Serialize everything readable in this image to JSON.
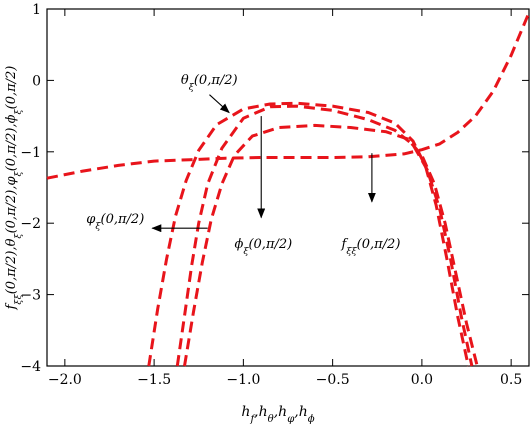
{
  "chart_data": {
    "type": "line",
    "xlabel": "h_f,h_θ,h_φ,h_ϕ",
    "ylabel": "f_ξξ(0,π/2),θ_ξ(0,π/2),φ_ξ(0,π/2),ϕ_ξ(0,π/2)",
    "xlim": [
      -2.1,
      0.6
    ],
    "ylim": [
      -4,
      1
    ],
    "x_ticks": [
      -2.0,
      -1.5,
      -1.0,
      -0.5,
      0.0,
      0.5
    ],
    "x_tick_labels": [
      "−2.0",
      "−1.5",
      "−1.0",
      "−0.5",
      "0.0",
      "0.5"
    ],
    "y_ticks": [
      -4,
      -3,
      -2,
      -1,
      0,
      1
    ],
    "y_tick_labels": [
      "−4",
      "−3",
      "−2",
      "−1",
      "0",
      "1"
    ],
    "grid": false,
    "line_style": "dashed",
    "line_color": "#e8141b",
    "series": [
      {
        "name": "f_ξξ(0,π/2)",
        "x": [
          -2.1,
          -1.9,
          -1.7,
          -1.5,
          -1.3,
          -1.1,
          -0.9,
          -0.7,
          -0.5,
          -0.3,
          -0.1,
          0.0,
          0.1,
          0.2,
          0.3,
          0.4,
          0.5,
          0.6
        ],
        "values": [
          -1.37,
          -1.27,
          -1.19,
          -1.13,
          -1.11,
          -1.09,
          -1.08,
          -1.08,
          -1.08,
          -1.07,
          -1.03,
          -0.97,
          -0.89,
          -0.73,
          -0.5,
          -0.15,
          0.35,
          0.95
        ]
      },
      {
        "name": "θ_ξ(0,π/2)",
        "x": [
          -1.53,
          -1.48,
          -1.43,
          -1.38,
          -1.32,
          -1.25,
          -1.15,
          -1.0,
          -0.85,
          -0.7,
          -0.5,
          -0.3,
          -0.15,
          -0.05,
          0.02,
          0.08,
          0.14,
          0.2,
          0.26
        ],
        "values": [
          -4.0,
          -3.2,
          -2.5,
          -1.9,
          -1.4,
          -0.98,
          -0.62,
          -0.4,
          -0.33,
          -0.32,
          -0.36,
          -0.45,
          -0.6,
          -0.85,
          -1.2,
          -1.75,
          -2.5,
          -3.3,
          -4.0
        ]
      },
      {
        "name": "φ_ξ(0,π/2)",
        "x": [
          -1.37,
          -1.33,
          -1.29,
          -1.25,
          -1.2,
          -1.12,
          -1.0,
          -0.85,
          -0.7,
          -0.5,
          -0.3,
          -0.15,
          -0.05,
          0.03,
          0.1,
          0.16,
          0.22,
          0.28
        ],
        "values": [
          -4.0,
          -3.3,
          -2.6,
          -2.0,
          -1.45,
          -0.95,
          -0.53,
          -0.37,
          -0.36,
          -0.42,
          -0.55,
          -0.7,
          -0.9,
          -1.25,
          -1.8,
          -2.5,
          -3.3,
          -4.0
        ]
      },
      {
        "name": "ϕ_ξ(0,π/2)",
        "x": [
          -1.33,
          -1.28,
          -1.23,
          -1.18,
          -1.12,
          -1.05,
          -0.95,
          -0.8,
          -0.6,
          -0.4,
          -0.2,
          -0.08,
          0.0,
          0.07,
          0.13,
          0.19,
          0.25,
          0.31
        ],
        "values": [
          -4.0,
          -3.25,
          -2.55,
          -1.95,
          -1.45,
          -1.05,
          -0.78,
          -0.66,
          -0.63,
          -0.66,
          -0.72,
          -0.82,
          -1.05,
          -1.45,
          -2.0,
          -2.7,
          -3.4,
          -4.0
        ]
      }
    ],
    "annotations": [
      {
        "text": "θ_ξ(0,π/2)",
        "text_at": [
          -1.35,
          -0.05
        ],
        "arrow_from": [
          -1.19,
          -0.2
        ],
        "arrow_to": [
          -1.08,
          -0.45
        ],
        "anchor": "start"
      },
      {
        "text": "φ_ξ(0,π/2)",
        "text_at": [
          -1.88,
          -2.0
        ],
        "arrow_from": [
          -1.2,
          -2.07
        ],
        "arrow_to": [
          -1.51,
          -2.07
        ],
        "anchor": "start"
      },
      {
        "text": "ϕ_ξ(0,π/2)",
        "text_at": [
          -1.05,
          -2.35
        ],
        "arrow_from": [
          -0.9,
          -0.5
        ],
        "arrow_to": [
          -0.9,
          -1.92
        ],
        "anchor": "start"
      },
      {
        "text": "f_ξξ(0,π/2)",
        "text_at": [
          -0.45,
          -2.35
        ],
        "arrow_from": [
          -0.28,
          -1.02
        ],
        "arrow_to": [
          -0.28,
          -1.7
        ],
        "anchor": "start"
      }
    ]
  }
}
